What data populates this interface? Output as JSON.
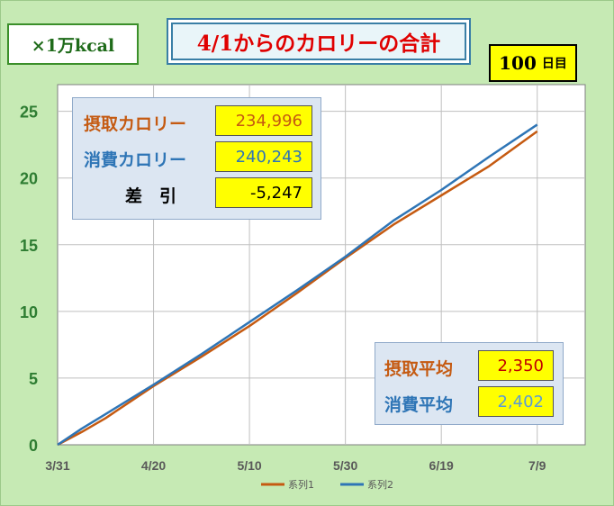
{
  "unit_label": "×1万kcal",
  "title": "4/1からのカロリーの合計",
  "days": {
    "value": "100",
    "label": "日目"
  },
  "totals": {
    "intake_label": "摂取カロリー",
    "intake_value": "234,996",
    "burn_label": "消費カロリー",
    "burn_value": "240,243",
    "diff_label": "差　引",
    "diff_value": "-5,247"
  },
  "averages": {
    "intake_label": "摂取平均",
    "intake_value": "2,350",
    "burn_label": "消費平均",
    "burn_value": "2,402"
  },
  "colors": {
    "series1": "#c55a11",
    "series2": "#2e75b6",
    "axis_tick": "#2e7d32",
    "plot_bg": "#ffffff",
    "grid": "#bfbfbf"
  },
  "chart_data": {
    "type": "line",
    "x_ticks": [
      "3/31",
      "4/20",
      "5/10",
      "5/30",
      "6/19",
      "7/9"
    ],
    "x_tick_days": [
      0,
      20,
      40,
      60,
      80,
      100
    ],
    "xlim": [
      0,
      110
    ],
    "ylim": [
      0,
      27
    ],
    "y_ticks": [
      0,
      5,
      10,
      15,
      20,
      25
    ],
    "grid": "vertical and horizontal",
    "legend_position": "bottom",
    "series": [
      {
        "name": "系列1",
        "days": [
          0,
          5,
          10,
          20,
          30,
          40,
          50,
          60,
          70,
          80,
          90,
          100
        ],
        "values": [
          0,
          0.95,
          2.0,
          4.4,
          6.6,
          8.9,
          11.4,
          14.0,
          16.5,
          18.7,
          20.9,
          23.5
        ]
      },
      {
        "name": "系列2",
        "days": [
          0,
          5,
          10,
          20,
          30,
          40,
          50,
          60,
          70,
          80,
          90,
          100
        ],
        "values": [
          0,
          1.2,
          2.3,
          4.5,
          6.8,
          9.2,
          11.6,
          14.1,
          16.8,
          19.1,
          21.6,
          24.0
        ]
      }
    ]
  }
}
